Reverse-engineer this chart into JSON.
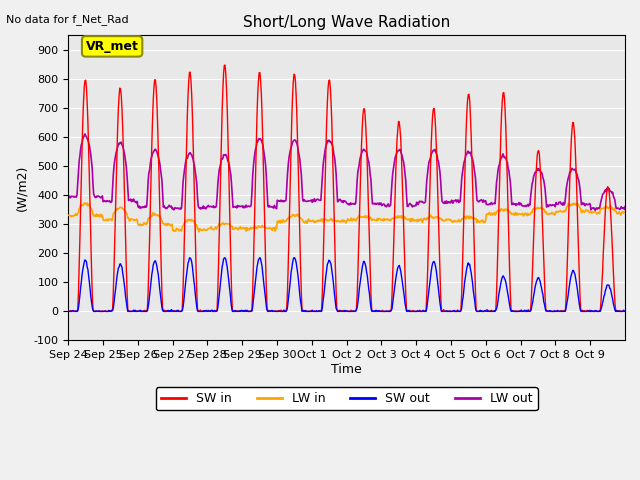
{
  "title": "Short/Long Wave Radiation",
  "ylabel": "(W/m2)",
  "xlabel": "Time",
  "top_left_text": "No data for f_Net_Rad",
  "annotation_label": "VR_met",
  "ylim": [
    -100,
    950
  ],
  "yticks": [
    -100,
    0,
    100,
    200,
    300,
    400,
    500,
    600,
    700,
    800,
    900
  ],
  "x_tick_labels": [
    "Sep 24",
    "Sep 25",
    "Sep 26",
    "Sep 27",
    "Sep 28",
    "Sep 29",
    "Sep 30",
    "Oct 1",
    "Oct 2",
    "Oct 3",
    "Oct 4",
    "Oct 5",
    "Oct 6",
    "Oct 7",
    "Oct 8",
    "Oct 9"
  ],
  "colors": {
    "SW_in": "#ff0000",
    "LW_in": "#ffa500",
    "SW_out": "#0000ff",
    "LW_out": "#aa00aa"
  },
  "background_color": "#e8e8e8",
  "fig_background": "#f0f0f0",
  "legend": [
    {
      "label": "SW in",
      "color": "#ff0000"
    },
    {
      "label": "LW in",
      "color": "#ffa500"
    },
    {
      "label": "SW out",
      "color": "#0000ff"
    },
    {
      "label": "LW out",
      "color": "#aa00aa"
    }
  ],
  "n_days": 16,
  "SW_in_peaks": [
    800,
    770,
    800,
    825,
    850,
    825,
    820,
    800,
    700,
    655,
    700,
    750,
    755,
    555,
    650,
    430
  ],
  "SW_out_peaks": [
    175,
    165,
    175,
    185,
    185,
    185,
    185,
    175,
    170,
    155,
    170,
    165,
    120,
    115,
    140,
    90
  ],
  "LW_in_day": [
    370,
    355,
    335,
    315,
    300,
    290,
    330,
    315,
    325,
    325,
    325,
    325,
    350,
    355,
    370,
    360
  ],
  "LW_in_night": [
    330,
    315,
    300,
    280,
    285,
    285,
    310,
    310,
    315,
    315,
    315,
    310,
    335,
    335,
    345,
    340
  ],
  "LW_out_peaks": [
    605,
    580,
    555,
    545,
    540,
    595,
    590,
    590,
    555,
    555,
    555,
    550,
    535,
    490,
    490,
    420
  ],
  "LW_out_night": [
    395,
    380,
    360,
    355,
    360,
    360,
    380,
    380,
    370,
    365,
    375,
    380,
    370,
    365,
    370,
    355
  ]
}
